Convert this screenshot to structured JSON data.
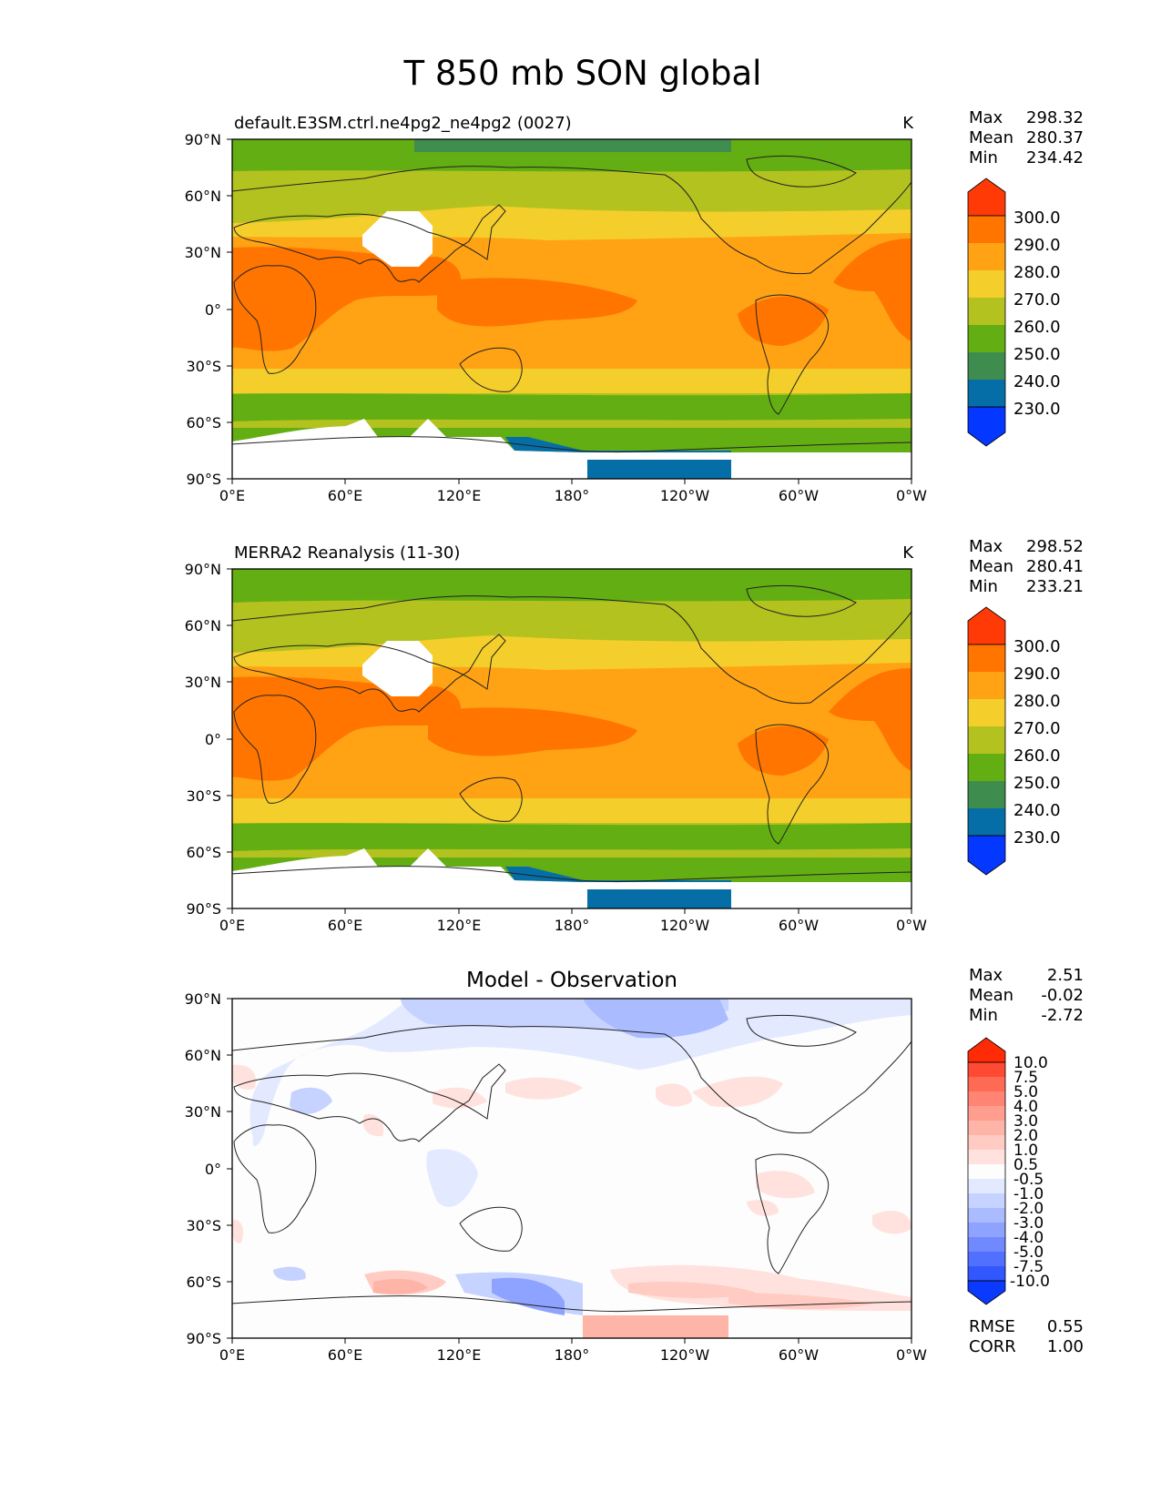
{
  "figure": {
    "title": "T 850 mb SON global"
  },
  "x_ticks": [
    "0°E",
    "60°E",
    "120°E",
    "180°",
    "120°W",
    "60°W",
    "0°W"
  ],
  "y_ticks": [
    "90°N",
    "60°N",
    "30°N",
    "0°",
    "30°S",
    "60°S",
    "90°S"
  ],
  "panels": [
    {
      "title_left": "default.E3SM.ctrl.ne4pg2_ne4pg2 (0027)",
      "title_center": "",
      "units": "K",
      "stats": [
        {
          "label": "Max",
          "value": "298.32"
        },
        {
          "label": "Mean",
          "value": "280.37"
        },
        {
          "label": "Min",
          "value": "234.42"
        }
      ],
      "colorbar": {
        "labels": [
          "300.0",
          "290.0",
          "280.0",
          "270.0",
          "260.0",
          "250.0",
          "240.0",
          "230.0"
        ],
        "colors": [
          "#ff3a06",
          "#ff7500",
          "#ffa214",
          "#f4ce2a",
          "#b3c21e",
          "#63ae12",
          "#3f8d4e",
          "#066ea6",
          "#0437ff"
        ]
      },
      "extra_stats": []
    },
    {
      "title_left": "MERRA2 Reanalysis (11-30)",
      "title_center": "",
      "units": "K",
      "stats": [
        {
          "label": "Max",
          "value": "298.52"
        },
        {
          "label": "Mean",
          "value": "280.41"
        },
        {
          "label": "Min",
          "value": "233.21"
        }
      ],
      "colorbar": {
        "labels": [
          "300.0",
          "290.0",
          "280.0",
          "270.0",
          "260.0",
          "250.0",
          "240.0",
          "230.0"
        ],
        "colors": [
          "#ff3a06",
          "#ff7500",
          "#ffa214",
          "#f4ce2a",
          "#b3c21e",
          "#63ae12",
          "#3f8d4e",
          "#066ea6",
          "#0437ff"
        ]
      },
      "extra_stats": []
    },
    {
      "title_left": "",
      "title_center": "Model - Observation",
      "units": "",
      "stats": [
        {
          "label": "Max",
          "value": "2.51"
        },
        {
          "label": "Mean",
          "value": "-0.02"
        },
        {
          "label": "Min",
          "value": "-2.72"
        }
      ],
      "colorbar": {
        "labels": [
          "10.0",
          "7.5",
          "5.0",
          "4.0",
          "3.0",
          "2.0",
          "1.0",
          "0.5",
          "-0.5",
          "-1.0",
          "-2.0",
          "-3.0",
          "-4.0",
          "-5.0",
          "-7.5",
          "-10.0"
        ],
        "colors": [
          "#ff2a06",
          "#ff4a33",
          "#ff6a55",
          "#ff8474",
          "#ff9d8f",
          "#ffb4a8",
          "#ffcbc2",
          "#ffe2dd",
          "#fdfdfd",
          "#e3e9ff",
          "#c6d2ff",
          "#aabbff",
          "#8ea3ff",
          "#7089ff",
          "#5270ff",
          "#3357ff",
          "#0b3aff"
        ]
      },
      "extra_stats": [
        {
          "label": "RMSE",
          "value": "0.55"
        },
        {
          "label": "CORR",
          "value": "1.00"
        }
      ]
    }
  ]
}
